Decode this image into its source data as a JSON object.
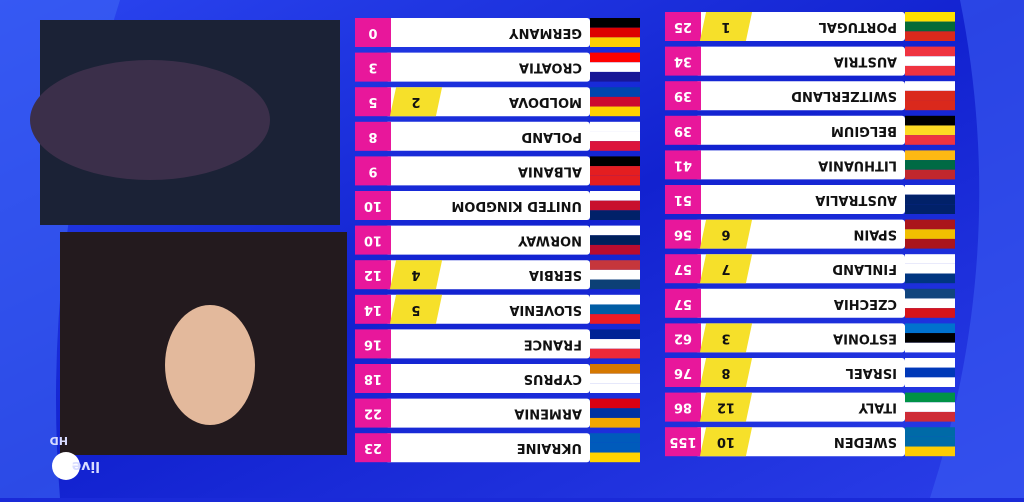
{
  "board": {
    "left": [
      {
        "country": "GERMANY",
        "total": 0
      },
      {
        "country": "CROATIA",
        "total": 3
      },
      {
        "country": "MOLDOVA",
        "total": 5,
        "points": 2
      },
      {
        "country": "POLAND",
        "total": 8
      },
      {
        "country": "ALBANIA",
        "total": 9
      },
      {
        "country": "UNITED KINGDOM",
        "total": 10
      },
      {
        "country": "NORWAY",
        "total": 10
      },
      {
        "country": "SERBIA",
        "total": 12,
        "points": 4
      },
      {
        "country": "SLOVENIA",
        "total": 14,
        "points": 5
      },
      {
        "country": "FRANCE",
        "total": 16
      },
      {
        "country": "CYPRUS",
        "total": 18
      },
      {
        "country": "ARMENIA",
        "total": 22
      },
      {
        "country": "UKRAINE",
        "total": 23
      }
    ],
    "right": [
      {
        "country": "PORTUGAL",
        "total": 25,
        "points": 1
      },
      {
        "country": "AUSTRIA",
        "total": 34
      },
      {
        "country": "SWITZERLAND",
        "total": 39
      },
      {
        "country": "BELGIUM",
        "total": 39
      },
      {
        "country": "LITHUANIA",
        "total": 41
      },
      {
        "country": "AUSTRALIA",
        "total": 51
      },
      {
        "country": "SPAIN",
        "total": 56,
        "points": 6
      },
      {
        "country": "FINLAND",
        "total": 57,
        "points": 7
      },
      {
        "country": "CZECHIA",
        "total": 57
      },
      {
        "country": "ESTONIA",
        "total": 62,
        "points": 3
      },
      {
        "country": "ISRAEL",
        "total": 76,
        "points": 8
      },
      {
        "country": "ITALY",
        "total": 86,
        "points": 12
      },
      {
        "country": "SWEDEN",
        "total": 155,
        "points": 10
      }
    ]
  },
  "overlay": {
    "live": "live",
    "hd": "HD"
  }
}
